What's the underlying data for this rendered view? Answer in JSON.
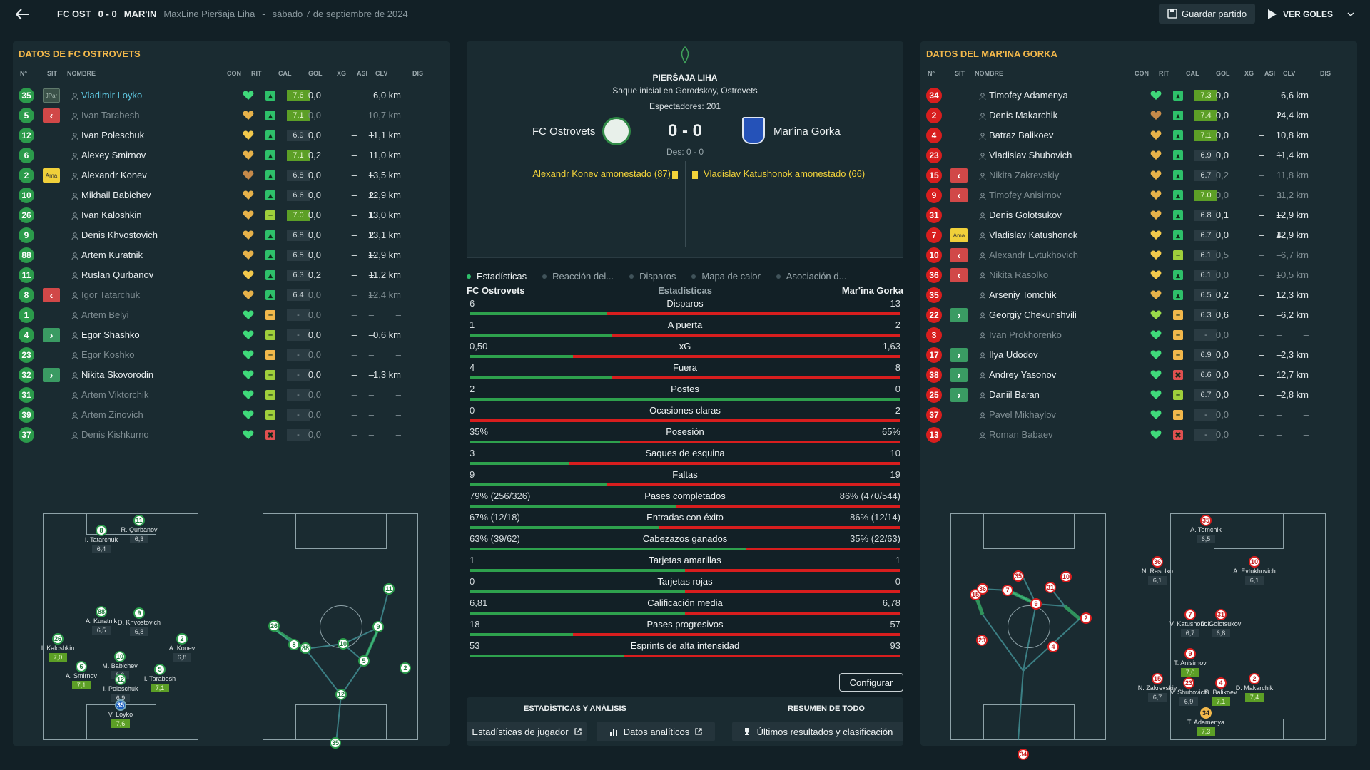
{
  "header": {
    "home_short": "FC OST",
    "score": "0 - 0",
    "away_short": "MAR'IN",
    "competition": "MaxLine Pieršaja Liha",
    "separator": "-",
    "date": "sábado 7 de septiembre de 2024",
    "save_label": "Guardar partido",
    "goals_label": "VER GOLES"
  },
  "columns": [
    "Nº",
    "SIT",
    "NOMBRE",
    "CON",
    "RIT",
    "CAL",
    "GOL",
    "XG",
    "ASI",
    "CLV",
    "DIS"
  ],
  "home": {
    "title": "DATOS DE FC OSTROVETS",
    "players": [
      {
        "num": "35",
        "numc": "g",
        "sit": "JPar",
        "name": "Vladimir Loyko",
        "style": "hi",
        "heart": "#3fd97a",
        "rit": "up",
        "cal": "7.6",
        "calc": "good",
        "gol": "0,0",
        "xg": "–",
        "asi": "–",
        "clv": "",
        "dis": "6,0 km"
      },
      {
        "num": "5",
        "numc": "g",
        "sit": "out",
        "name": "Ivan Tarabesh",
        "style": "dim",
        "heart": "#e6b24a",
        "rit": "up",
        "cal": "7.1",
        "calc": "good",
        "gol": "0,0",
        "xg": "–",
        "asi": "–",
        "clv": "",
        "dis": "10,7 km"
      },
      {
        "num": "12",
        "numc": "g",
        "sit": "",
        "name": "Ivan Poleschuk",
        "style": "",
        "heart": "#f2c94c",
        "rit": "up",
        "cal": "6.9",
        "calc": "",
        "gol": "0,0",
        "xg": "–",
        "asi": "–",
        "clv": "",
        "dis": "11,1 km"
      },
      {
        "num": "6",
        "numc": "g",
        "sit": "",
        "name": "Alexey Smirnov",
        "style": "",
        "heart": "#e6b24a",
        "rit": "up",
        "cal": "7.1",
        "calc": "good",
        "gol": "0,2",
        "xg": "–",
        "asi": "1",
        "clv": "",
        "dis": "11,0 km"
      },
      {
        "num": "2",
        "numc": "g",
        "sit": "Ama",
        "name": "Alexandr Konev",
        "style": "",
        "heart": "#c58a4a",
        "rit": "up",
        "cal": "6.8",
        "calc": "",
        "gol": "0,0",
        "xg": "–",
        "asi": "–",
        "clv": "",
        "dis": "13,5 km"
      },
      {
        "num": "10",
        "numc": "g",
        "sit": "",
        "name": "Mikhail Babichev",
        "style": "",
        "heart": "#e6b24a",
        "rit": "up",
        "cal": "6.6",
        "calc": "",
        "gol": "0,0",
        "xg": "–",
        "asi": "2",
        "clv": "",
        "dis": "12,9 km"
      },
      {
        "num": "26",
        "numc": "g",
        "sit": "",
        "name": "Ivan Kaloshkin",
        "style": "",
        "heart": "#e6b24a",
        "rit": "mid",
        "cal": "7.0",
        "calc": "good",
        "gol": "0,0",
        "xg": "–",
        "asi": "1",
        "clv": "",
        "dis": "13,0 km"
      },
      {
        "num": "9",
        "numc": "g",
        "sit": "",
        "name": "Denis Khvostovich",
        "style": "",
        "heart": "#e6b24a",
        "rit": "up",
        "cal": "6.8",
        "calc": "",
        "gol": "0,0",
        "xg": "–",
        "asi": "2",
        "clv": "",
        "dis": "13,1 km"
      },
      {
        "num": "88",
        "numc": "g",
        "sit": "",
        "name": "Artem Kuratnik",
        "style": "",
        "heart": "#e6b24a",
        "rit": "up",
        "cal": "6.5",
        "calc": "",
        "gol": "0,0",
        "xg": "–",
        "asi": "–",
        "clv": "",
        "dis": "12,9 km"
      },
      {
        "num": "11",
        "numc": "g",
        "sit": "",
        "name": "Ruslan Qurbanov",
        "style": "",
        "heart": "#f2c94c",
        "rit": "up",
        "cal": "6.3",
        "calc": "",
        "gol": "0,2",
        "xg": "–",
        "asi": "–",
        "clv": "",
        "dis": "11,2 km"
      },
      {
        "num": "8",
        "numc": "g",
        "sit": "out",
        "name": "Igor Tatarchuk",
        "style": "dim",
        "heart": "#e6b24a",
        "rit": "up",
        "cal": "6.4",
        "calc": "",
        "gol": "0,0",
        "xg": "–",
        "asi": "–",
        "clv": "",
        "dis": "12,4 km"
      },
      {
        "num": "1",
        "numc": "g",
        "sit": "",
        "name": "Artem Belyi",
        "style": "dim",
        "heart": "#3fd97a",
        "rit": "warn",
        "cal": "-",
        "calc": "dash",
        "gol": "0,0",
        "xg": "–",
        "asi": "–",
        "clv": "",
        "dis": "–"
      },
      {
        "num": "4",
        "numc": "g",
        "sit": "in",
        "name": "Egor Shashko",
        "style": "",
        "heart": "#3fd97a",
        "rit": "mid",
        "cal": "-",
        "calc": "dash",
        "gol": "0,0",
        "xg": "–",
        "asi": "–",
        "clv": "",
        "dis": "0,6 km"
      },
      {
        "num": "23",
        "numc": "g",
        "sit": "",
        "name": "Egor Koshko",
        "style": "dim",
        "heart": "#3fd97a",
        "rit": "warn",
        "cal": "-",
        "calc": "dash",
        "gol": "0,0",
        "xg": "–",
        "asi": "–",
        "clv": "",
        "dis": "–"
      },
      {
        "num": "32",
        "numc": "g",
        "sit": "in",
        "name": "Nikita Skovorodin",
        "style": "",
        "heart": "#3fd97a",
        "rit": "mid",
        "cal": "-",
        "calc": "dash",
        "gol": "0,0",
        "xg": "–",
        "asi": "–",
        "clv": "",
        "dis": "1,3 km"
      },
      {
        "num": "31",
        "numc": "g",
        "sit": "",
        "name": "Artem Viktorchik",
        "style": "dim",
        "heart": "#3fd97a",
        "rit": "mid",
        "cal": "-",
        "calc": "dash",
        "gol": "0,0",
        "xg": "–",
        "asi": "–",
        "clv": "",
        "dis": "–"
      },
      {
        "num": "39",
        "numc": "g",
        "sit": "",
        "name": "Artem Zinovich",
        "style": "dim",
        "heart": "#3fd97a",
        "rit": "mid",
        "cal": "-",
        "calc": "dash",
        "gol": "0,0",
        "xg": "–",
        "asi": "–",
        "clv": "",
        "dis": "–"
      },
      {
        "num": "37",
        "numc": "g",
        "sit": "",
        "name": "Denis Kishkurno",
        "style": "dim",
        "heart": "#3fd97a",
        "rit": "bad",
        "cal": "-",
        "calc": "dash",
        "gol": "0,0",
        "xg": "–",
        "asi": "–",
        "clv": "",
        "dis": "–"
      }
    ]
  },
  "away": {
    "title": "DATOS DEL MAR'INA GORKA",
    "players": [
      {
        "num": "34",
        "numc": "r",
        "sit": "",
        "name": "Timofey Adamenya",
        "style": "",
        "heart": "#3fd97a",
        "rit": "up",
        "cal": "7.3",
        "calc": "good",
        "gol": "0,0",
        "xg": "–",
        "asi": "–",
        "clv": "",
        "dis": "6,6 km"
      },
      {
        "num": "2",
        "numc": "r",
        "sit": "",
        "name": "Denis Makarchik",
        "style": "",
        "heart": "#c58a4a",
        "rit": "up",
        "cal": "7.4",
        "calc": "good",
        "gol": "0,0",
        "xg": "–",
        "asi": "2",
        "clv": "",
        "dis": "14,4 km"
      },
      {
        "num": "4",
        "numc": "r",
        "sit": "",
        "name": "Batraz Balikoev",
        "style": "",
        "heart": "#e6b24a",
        "rit": "up",
        "cal": "7.1",
        "calc": "good",
        "gol": "0,0",
        "xg": "–",
        "asi": "1",
        "clv": "",
        "dis": "10,8 km"
      },
      {
        "num": "23",
        "numc": "r",
        "sit": "",
        "name": "Vladislav Shubovich",
        "style": "",
        "heart": "#e6b24a",
        "rit": "up",
        "cal": "6.9",
        "calc": "",
        "gol": "0,0",
        "xg": "–",
        "asi": "–",
        "clv": "",
        "dis": "11,4 km"
      },
      {
        "num": "15",
        "numc": "r",
        "sit": "out",
        "name": "Nikita Zakrevskiy",
        "style": "dim",
        "heart": "#e6b24a",
        "rit": "up",
        "cal": "6.7",
        "calc": "",
        "gol": "0,2",
        "xg": "–",
        "asi": "1",
        "clv": "",
        "dis": "11,8 km"
      },
      {
        "num": "9",
        "numc": "r",
        "sit": "out",
        "name": "Timofey Anisimov",
        "style": "dim",
        "heart": "#e6b24a",
        "rit": "up",
        "cal": "7.0",
        "calc": "good",
        "gol": "0,0",
        "xg": "–",
        "asi": "3",
        "clv": "",
        "dis": "11,2 km"
      },
      {
        "num": "31",
        "numc": "r",
        "sit": "",
        "name": "Denis Golotsukov",
        "style": "",
        "heart": "#e6b24a",
        "rit": "up",
        "cal": "6.8",
        "calc": "",
        "gol": "0,1",
        "xg": "–",
        "asi": "–",
        "clv": "",
        "dis": "12,9 km"
      },
      {
        "num": "7",
        "numc": "r",
        "sit": "Ama",
        "name": "Vladislav Katushonok",
        "style": "",
        "heart": "#f2c94c",
        "rit": "up",
        "cal": "6.7",
        "calc": "",
        "gol": "0,0",
        "xg": "–",
        "asi": "4",
        "clv": "",
        "dis": "12,9 km"
      },
      {
        "num": "10",
        "numc": "r",
        "sit": "out",
        "name": "Alexandr Evtukhovich",
        "style": "dim",
        "heart": "#f2c94c",
        "rit": "mid",
        "cal": "6.1",
        "calc": "",
        "gol": "0,5",
        "xg": "–",
        "asi": "–",
        "clv": "",
        "dis": "6,7 km"
      },
      {
        "num": "36",
        "numc": "r",
        "sit": "out",
        "name": "Nikita Rasolko",
        "style": "dim",
        "heart": "#f2c94c",
        "rit": "up",
        "cal": "6.1",
        "calc": "",
        "gol": "0,0",
        "xg": "–",
        "asi": "–",
        "clv": "",
        "dis": "10,5 km"
      },
      {
        "num": "35",
        "numc": "r",
        "sit": "",
        "name": "Arseniy Tomchik",
        "style": "",
        "heart": "#e6b24a",
        "rit": "up",
        "cal": "6.5",
        "calc": "",
        "gol": "0,2",
        "xg": "–",
        "asi": "1",
        "clv": "",
        "dis": "12,3 km"
      },
      {
        "num": "22",
        "numc": "r",
        "sit": "in",
        "name": "Georgiy Chekurishvili",
        "style": "",
        "heart": "#9ad94a",
        "rit": "warn",
        "cal": "6.3",
        "calc": "",
        "gol": "0,6",
        "xg": "–",
        "asi": "–",
        "clv": "",
        "dis": "6,2 km"
      },
      {
        "num": "3",
        "numc": "r",
        "sit": "",
        "name": "Ivan Prokhorenko",
        "style": "dim",
        "heart": "#3fd97a",
        "rit": "warn",
        "cal": "-",
        "calc": "dash",
        "gol": "0,0",
        "xg": "–",
        "asi": "–",
        "clv": "",
        "dis": "–"
      },
      {
        "num": "17",
        "numc": "r",
        "sit": "in",
        "name": "Ilya Udodov",
        "style": "",
        "heart": "#3fd97a",
        "rit": "warn",
        "cal": "6.9",
        "calc": "",
        "gol": "0,0",
        "xg": "–",
        "asi": "–",
        "clv": "",
        "dis": "2,3 km"
      },
      {
        "num": "38",
        "numc": "r",
        "sit": "in",
        "name": "Andrey Yasonov",
        "style": "",
        "heart": "#3fd97a",
        "rit": "bad",
        "cal": "6.6",
        "calc": "",
        "gol": "0,0",
        "xg": "–",
        "asi": "1",
        "clv": "",
        "dis": "2,7 km"
      },
      {
        "num": "25",
        "numc": "r",
        "sit": "in",
        "name": "Daniil Baran",
        "style": "",
        "heart": "#3fd97a",
        "rit": "mid",
        "cal": "6.7",
        "calc": "",
        "gol": "0,0",
        "xg": "–",
        "asi": "–",
        "clv": "",
        "dis": "2,8 km"
      },
      {
        "num": "37",
        "numc": "r",
        "sit": "",
        "name": "Pavel Mikhaylov",
        "style": "dim",
        "heart": "#3fd97a",
        "rit": "warn",
        "cal": "-",
        "calc": "dash",
        "gol": "0,0",
        "xg": "–",
        "asi": "–",
        "clv": "",
        "dis": "–"
      },
      {
        "num": "13",
        "numc": "r",
        "sit": "",
        "name": "Roman Babaev",
        "style": "dim",
        "heart": "#3fd97a",
        "rit": "bad",
        "cal": "-",
        "calc": "dash",
        "gol": "0,0",
        "xg": "–",
        "asi": "–",
        "clv": "",
        "dis": "–"
      }
    ]
  },
  "match": {
    "league": "PIERŠAJA LIHA",
    "venue": "Saque inicial en Gorodskoy, Ostrovets",
    "attendance": "Espectadores: 201",
    "home_team": "FC Ostrovets",
    "away_team": "Mar'ina Gorka",
    "score": "0 - 0",
    "halftime": "Des: 0 - 0",
    "home_event": "Alexandr Konev amonestado (87)",
    "away_event": "Vladislav Katushonok amonestado (66)",
    "home_crest": "#2f8a46",
    "away_crest": "#2552b8"
  },
  "tabs": [
    "Estadísticas",
    "Reacción del...",
    "Disparos",
    "Mapa de calor",
    "Asociación d..."
  ],
  "stats_header": {
    "home": "FC Ostrovets",
    "center": "Estadísticas",
    "away": "Mar'ina Gorka"
  },
  "stats": [
    {
      "label": "Disparos",
      "home": "6",
      "away": "13",
      "share": 0.32
    },
    {
      "label": "A puerta",
      "home": "1",
      "away": "2",
      "share": 0.33
    },
    {
      "label": "xG",
      "home": "0,50",
      "away": "1,63",
      "share": 0.24
    },
    {
      "label": "Fuera",
      "home": "4",
      "away": "8",
      "share": 0.33
    },
    {
      "label": "Postes",
      "home": "2",
      "away": "0",
      "share": 1.0
    },
    {
      "label": "Ocasiones claras",
      "home": "0",
      "away": "2",
      "share": 0.0
    },
    {
      "label": "Posesión",
      "home": "35%",
      "away": "65%",
      "share": 0.35
    },
    {
      "label": "Saques de esquina",
      "home": "3",
      "away": "10",
      "share": 0.23
    },
    {
      "label": "Faltas",
      "home": "9",
      "away": "19",
      "share": 0.32
    },
    {
      "label": "Pases completados",
      "home": "79% (256/326)",
      "away": "86% (470/544)",
      "share": 0.48
    },
    {
      "label": "Entradas con éxito",
      "home": "67% (12/18)",
      "away": "86% (12/14)",
      "share": 0.44
    },
    {
      "label": "Cabezazos ganados",
      "home": "63% (39/62)",
      "away": "35% (22/63)",
      "share": 0.64
    },
    {
      "label": "Tarjetas amarillas",
      "home": "1",
      "away": "1",
      "share": 0.5
    },
    {
      "label": "Tarjetas rojas",
      "home": "0",
      "away": "0",
      "share": 0.5
    },
    {
      "label": "Calificación media",
      "home": "6,81",
      "away": "6,78",
      "share": 0.5
    },
    {
      "label": "Pases progresivos",
      "home": "18",
      "away": "57",
      "share": 0.24
    },
    {
      "label": "Esprints de alta intensidad",
      "home": "53",
      "away": "93",
      "share": 0.36
    }
  ],
  "configure_label": "Configurar",
  "footer": {
    "analysis_title": "ESTADÍSTICAS Y ANÁLISIS",
    "summary_title": "RESUMEN DE TODO",
    "player_stats": "Estadísticas de jugador",
    "analytics": "Datos analíticos",
    "results": "Últimos resultados y clasificación"
  },
  "home_formation": [
    {
      "n": "11",
      "name": "R. Qurbanov",
      "rating": "6,3",
      "good": false
    },
    {
      "n": "8",
      "name": "I. Tatarchuk",
      "rating": "6,4",
      "good": false
    },
    {
      "n": "88",
      "name": "A. Kuratnik",
      "rating": "6,5",
      "good": false
    },
    {
      "n": "9",
      "name": "D. Khvostovich",
      "rating": "6,8",
      "good": false
    },
    {
      "n": "26",
      "name": "I. Kaloshkin",
      "rating": "7,0",
      "good": true
    },
    {
      "n": "10",
      "name": "M. Babichev",
      "rating": "6,6",
      "good": false
    },
    {
      "n": "2",
      "name": "A. Konev",
      "rating": "6,8",
      "good": false
    },
    {
      "n": "6",
      "name": "A. Smirnov",
      "rating": "7,1",
      "good": true
    },
    {
      "n": "12",
      "name": "I. Poleschuk",
      "rating": "6,9",
      "good": false
    },
    {
      "n": "5",
      "name": "I. Tarabesh",
      "rating": "7,1",
      "good": true
    },
    {
      "n": "35",
      "name": "V. Loyko",
      "rating": "7,6",
      "good": true
    }
  ],
  "away_formation": [
    {
      "n": "35",
      "name": "A. Tomchik",
      "rating": "6,5",
      "good": false
    },
    {
      "n": "36",
      "name": "N. Rasolko",
      "rating": "6,1",
      "good": false
    },
    {
      "n": "10",
      "name": "A. Evtukhovich",
      "rating": "6,1",
      "good": false
    },
    {
      "n": "7",
      "name": "V. Katushonok",
      "rating": "6,7",
      "good": false
    },
    {
      "n": "31",
      "name": "D. Golotsukov",
      "rating": "6,8",
      "good": false
    },
    {
      "n": "9",
      "name": "T. Anisimov",
      "rating": "7,0",
      "good": true
    },
    {
      "n": "15",
      "name": "N. Zakrevskiy",
      "rating": "6,7",
      "good": false
    },
    {
      "n": "23",
      "name": "V. Shubovich",
      "rating": "6,9",
      "good": false
    },
    {
      "n": "4",
      "name": "B. Balikoev",
      "rating": "7,1",
      "good": true
    },
    {
      "n": "2",
      "name": "D. Makarchik",
      "rating": "7,4",
      "good": true
    },
    {
      "n": "34",
      "name": "T. Adamenya",
      "rating": "7,3",
      "good": true
    }
  ],
  "home_pass_nodes": [
    "26",
    "8",
    "88",
    "10",
    "9",
    "11",
    "2",
    "5",
    "12",
    "35"
  ],
  "away_pass_nodes": [
    "15",
    "36",
    "7",
    "35",
    "9",
    "31",
    "10",
    "2",
    "4",
    "23",
    "34"
  ]
}
